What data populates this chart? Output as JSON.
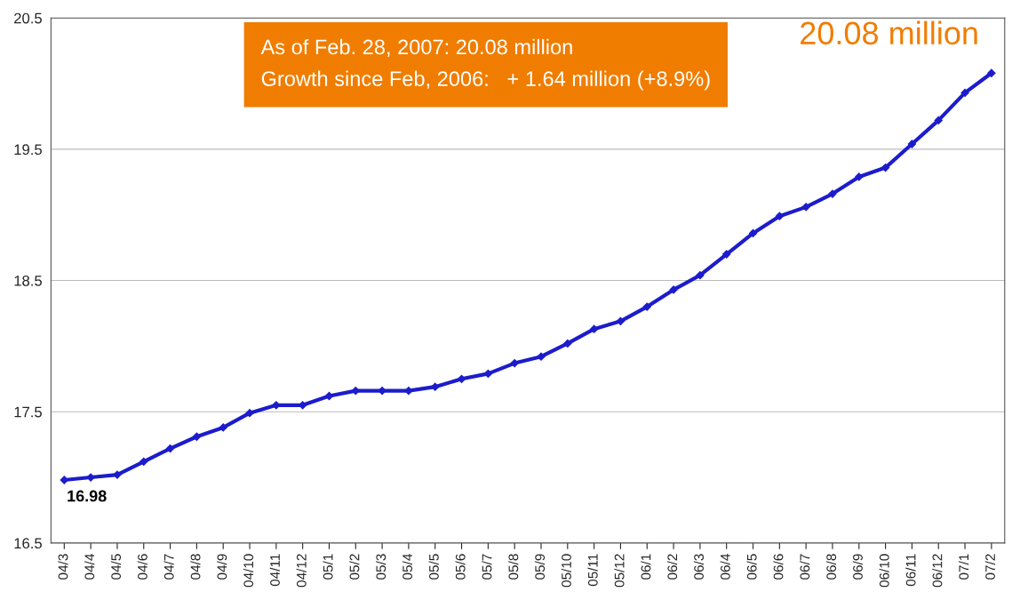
{
  "chart_data": {
    "type": "line",
    "categories": [
      "04/3",
      "04/4",
      "04/5",
      "04/6",
      "04/7",
      "04/8",
      "04/9",
      "04/10",
      "04/11",
      "04/12",
      "05/1",
      "05/2",
      "05/3",
      "05/4",
      "05/5",
      "05/6",
      "05/7",
      "05/8",
      "05/9",
      "05/10",
      "05/11",
      "05/12",
      "06/1",
      "06/2",
      "06/3",
      "06/4",
      "06/5",
      "06/6",
      "06/7",
      "06/8",
      "06/9",
      "06/10",
      "06/11",
      "06/12",
      "07/1",
      "07/2"
    ],
    "series": [
      {
        "color": "#1c1ccc",
        "values": [
          16.98,
          17.0,
          17.02,
          17.12,
          17.22,
          17.31,
          17.38,
          17.49,
          17.55,
          17.55,
          17.62,
          17.66,
          17.66,
          17.66,
          17.69,
          17.75,
          17.79,
          17.87,
          17.92,
          18.02,
          18.13,
          18.19,
          18.3,
          18.43,
          18.54,
          18.7,
          18.86,
          18.99,
          19.06,
          19.16,
          19.29,
          19.36,
          19.54,
          19.72,
          19.93,
          20.08
        ],
        "value_labels": [
          "16.98",
          null,
          null,
          null,
          null,
          null,
          null,
          null,
          null,
          null,
          null,
          null,
          null,
          null,
          null,
          null,
          null,
          null,
          null,
          null,
          null,
          null,
          null,
          null,
          null,
          null,
          null,
          null,
          null,
          null,
          null,
          null,
          null,
          null,
          null,
          "20.08 million"
        ]
      }
    ],
    "ylim": [
      16.5,
      20.5
    ],
    "yticks": [
      16.5,
      17.5,
      18.5,
      19.5,
      20.5
    ],
    "grid": "y",
    "marker": "diamond",
    "line_style": "solid",
    "annotations": [
      "As of Feb. 28, 2007: 20.08 million",
      "Growth since Feb, 2006:   + 1.64 million (+8.9%)"
    ]
  }
}
